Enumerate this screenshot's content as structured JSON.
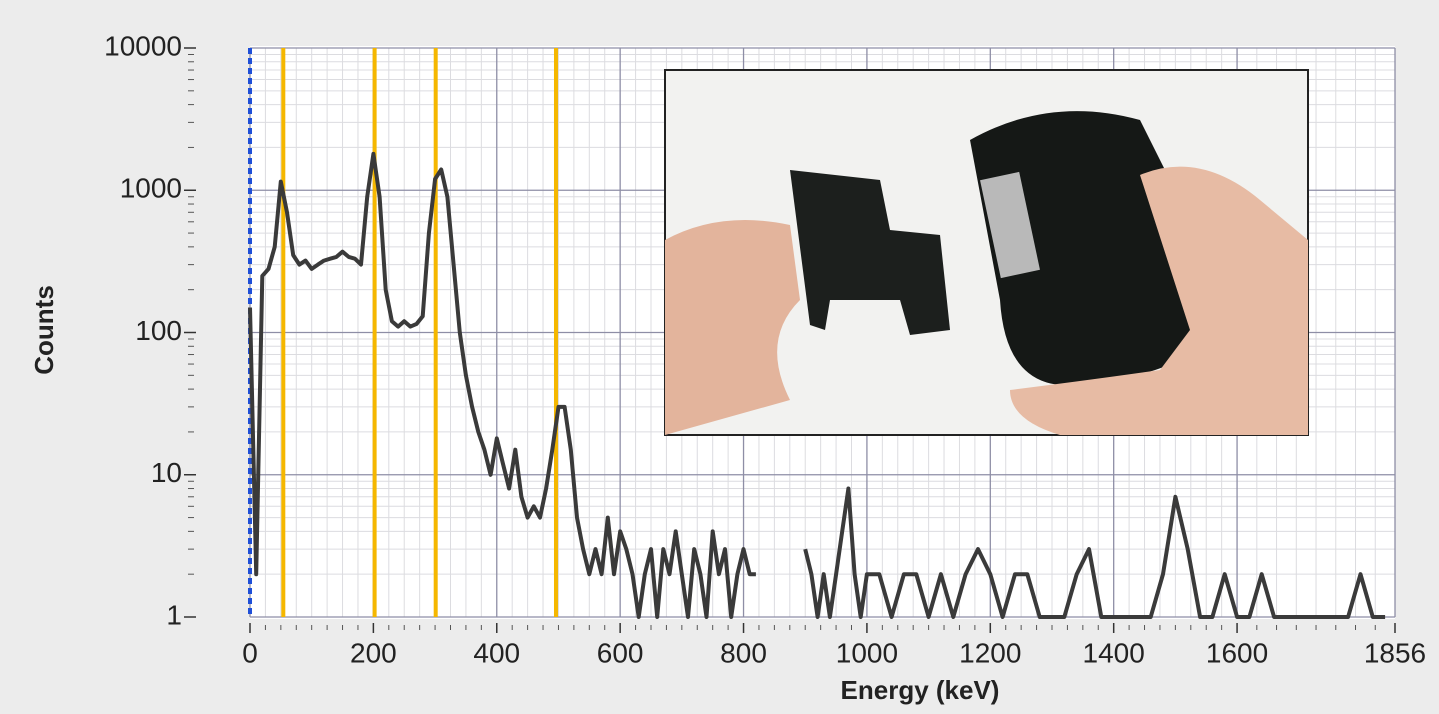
{
  "chart_data": {
    "type": "line",
    "x_label": "Energy (keV)",
    "y_label": "Counts",
    "log_y": true,
    "grid": true,
    "x": [
      0,
      10,
      20,
      30,
      40,
      50,
      60,
      70,
      80,
      90,
      100,
      110,
      120,
      130,
      140,
      150,
      160,
      170,
      180,
      190,
      200,
      210,
      220,
      230,
      240,
      250,
      260,
      270,
      280,
      290,
      300,
      310,
      320,
      330,
      340,
      350,
      360,
      370,
      380,
      390,
      400,
      410,
      420,
      430,
      440,
      450,
      460,
      470,
      480,
      490,
      500,
      510,
      520,
      530,
      540,
      550,
      560,
      570,
      580,
      590,
      600,
      610,
      620,
      630,
      640,
      650,
      660,
      670,
      680,
      690,
      700,
      710,
      720,
      730,
      740,
      750,
      760,
      770,
      780,
      790,
      800,
      810,
      820,
      830,
      840,
      850,
      860,
      870,
      880,
      890,
      900,
      910,
      920,
      930,
      940,
      950,
      960,
      970,
      980,
      990,
      1000,
      1020,
      1040,
      1060,
      1080,
      1100,
      1120,
      1140,
      1160,
      1180,
      1200,
      1220,
      1240,
      1260,
      1280,
      1300,
      1320,
      1340,
      1360,
      1380,
      1400,
      1420,
      1440,
      1460,
      1480,
      1500,
      1520,
      1540,
      1560,
      1580,
      1600,
      1620,
      1640,
      1660,
      1680,
      1700,
      1720,
      1740,
      1760,
      1780,
      1800,
      1820,
      1840
    ],
    "series": [
      {
        "color": "#3a3a3a",
        "values": [
          150,
          2,
          250,
          280,
          400,
          1150,
          700,
          350,
          300,
          320,
          280,
          300,
          320,
          330,
          340,
          370,
          340,
          330,
          300,
          900,
          1800,
          900,
          200,
          120,
          110,
          120,
          110,
          115,
          130,
          500,
          1200,
          1400,
          900,
          300,
          100,
          50,
          30,
          20,
          15,
          10,
          18,
          12,
          8,
          15,
          7,
          5,
          6,
          5,
          8,
          15,
          30,
          30,
          15,
          5,
          3,
          2,
          3,
          2,
          5,
          2,
          4,
          3,
          2,
          1,
          2,
          3,
          1,
          3,
          2,
          4,
          2,
          1,
          3,
          2,
          1,
          4,
          2,
          3,
          1,
          2,
          3,
          2,
          2,
          null,
          null,
          null,
          null,
          null,
          null,
          null,
          3,
          2,
          1,
          2,
          1,
          2,
          4,
          8,
          2,
          1,
          2,
          2,
          1,
          2,
          2,
          1,
          2,
          1,
          2,
          3,
          2,
          1,
          2,
          2,
          1,
          1,
          1,
          2,
          3,
          1,
          1,
          1,
          1,
          1,
          2,
          7,
          3,
          1,
          1,
          2,
          1,
          1,
          2,
          1,
          1,
          1,
          1,
          1,
          1,
          1,
          2,
          1,
          1
        ]
      }
    ],
    "reference_lines": [
      {
        "x": 0,
        "color": "#1f4fd8",
        "dashed": true
      },
      {
        "x": 54,
        "color": "#f5b700",
        "dashed": false
      },
      {
        "x": 202,
        "color": "#f5b700",
        "dashed": false
      },
      {
        "x": 301,
        "color": "#f5b700",
        "dashed": false
      },
      {
        "x": 496,
        "color": "#f5b700",
        "dashed": false
      }
    ],
    "xlim": [
      0,
      1856
    ],
    "xticks": [
      0,
      200,
      400,
      600,
      800,
      1000,
      1200,
      1400,
      1600,
      1856
    ],
    "ylim": [
      1,
      10000
    ],
    "yticks": [
      1,
      10,
      100,
      1000,
      10000
    ]
  }
}
